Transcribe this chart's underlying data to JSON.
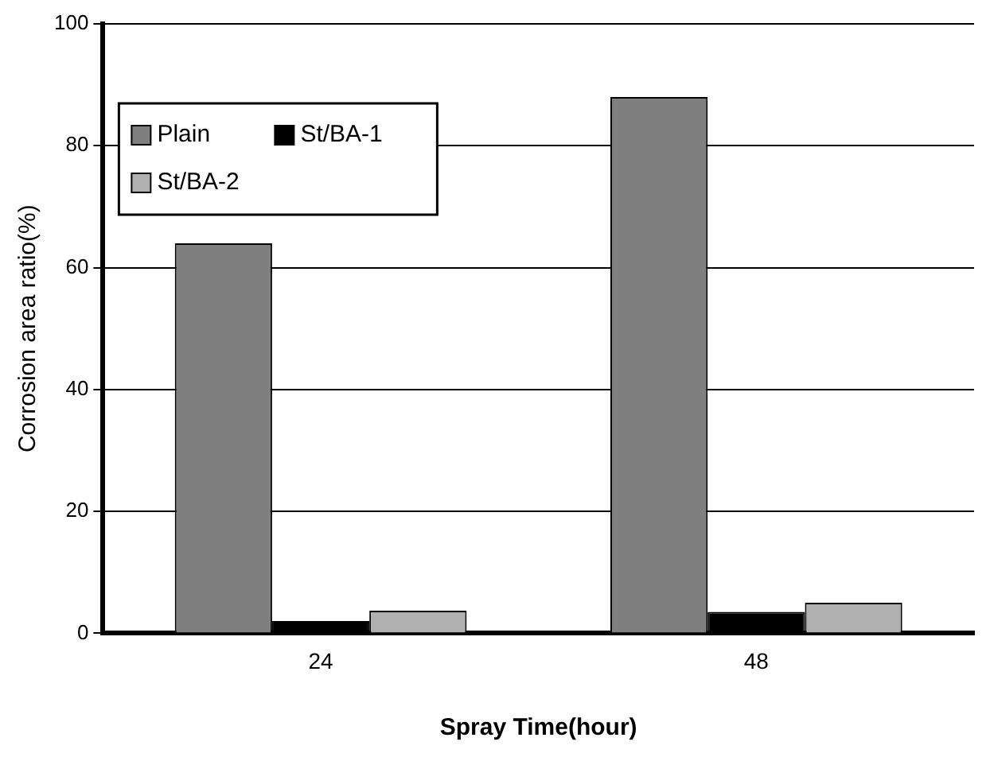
{
  "chart_data": {
    "type": "bar",
    "xlabel": "Spray Time(hour)",
    "ylabel": "Corrosion area ratio(%)",
    "categories": [
      "24",
      "48"
    ],
    "series": [
      {
        "name": "Plain",
        "color": "#7f7f7f",
        "values": [
          64,
          88
        ]
      },
      {
        "name": "St/BA-1",
        "color": "#000000",
        "values": [
          2,
          3.5
        ]
      },
      {
        "name": "St/BA-2",
        "color": "#b0b0b0",
        "values": [
          3.7,
          5
        ]
      }
    ],
    "ylim": [
      0,
      100
    ],
    "yticks": [
      0,
      20,
      40,
      60,
      80,
      100
    ],
    "grid": "y",
    "legend": "top left"
  }
}
